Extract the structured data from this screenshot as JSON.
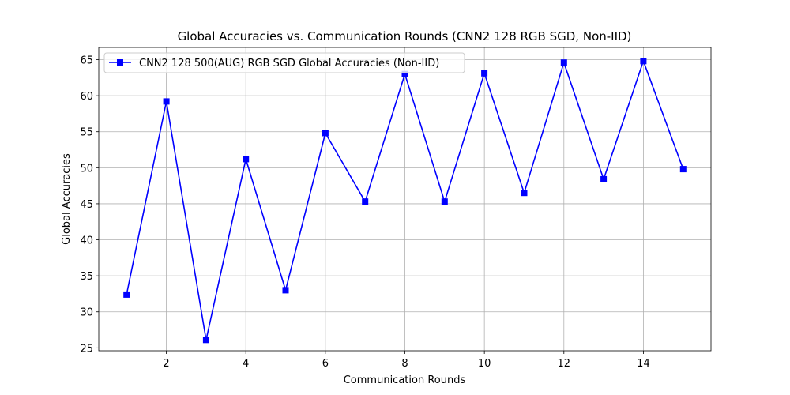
{
  "chart_data": {
    "type": "line",
    "title": "Global Accuracies vs. Communication Rounds (CNN2 128 RGB SGD, Non-IID)",
    "xlabel": "Communication Rounds",
    "ylabel": "Global Accuracies",
    "xlim": [
      0.3,
      15.7
    ],
    "ylim": [
      24.6,
      66.7
    ],
    "xticks": [
      2,
      4,
      6,
      8,
      10,
      12,
      14
    ],
    "yticks": [
      25,
      30,
      35,
      40,
      45,
      50,
      55,
      60,
      65
    ],
    "grid": true,
    "legend_position": "upper-left",
    "series": [
      {
        "name": "CNN2 128 500(AUG) RGB SGD Global Accuracies (Non-IID)",
        "color": "#0000ff",
        "marker": "square",
        "x": [
          1,
          2,
          3,
          4,
          5,
          6,
          7,
          8,
          9,
          10,
          11,
          12,
          13,
          14,
          15
        ],
        "y": [
          32.4,
          59.2,
          26.1,
          51.2,
          33.0,
          54.8,
          45.3,
          63.0,
          45.3,
          63.1,
          46.5,
          64.6,
          48.4,
          64.8,
          49.8
        ]
      }
    ]
  }
}
